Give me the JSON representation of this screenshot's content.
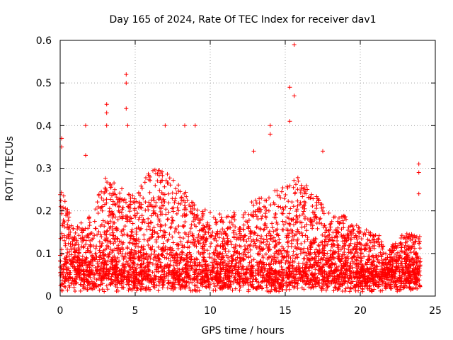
{
  "chart_data": {
    "type": "scatter",
    "title": "Day 165 of 2024, Rate Of TEC Index for receiver dav1",
    "xlabel": "GPS time / hours",
    "ylabel": "ROTI / TECUs",
    "xlim": [
      0,
      25
    ],
    "ylim": [
      0,
      0.6
    ],
    "x_ticks": [
      0,
      5,
      10,
      15,
      20,
      25
    ],
    "x_tick_labels": [
      "0",
      "5",
      "10",
      "15",
      "20",
      "25"
    ],
    "y_ticks": [
      0,
      0.1,
      0.2,
      0.3,
      0.4,
      0.5,
      0.6
    ],
    "y_tick_labels": [
      "0",
      "0.1",
      "0.2",
      "0.3",
      "0.4",
      "0.5",
      "0.6"
    ],
    "grid": true,
    "marker": "plus",
    "series_color": "#ff0000",
    "data_x_range": [
      0,
      24
    ],
    "notable_points": [
      {
        "x": 0.1,
        "y": 0.37
      },
      {
        "x": 0.1,
        "y": 0.35
      },
      {
        "x": 1.7,
        "y": 0.4
      },
      {
        "x": 1.7,
        "y": 0.33
      },
      {
        "x": 3.1,
        "y": 0.45
      },
      {
        "x": 3.1,
        "y": 0.43
      },
      {
        "x": 3.1,
        "y": 0.4
      },
      {
        "x": 4.4,
        "y": 0.52
      },
      {
        "x": 4.4,
        "y": 0.5
      },
      {
        "x": 4.4,
        "y": 0.44
      },
      {
        "x": 4.5,
        "y": 0.4
      },
      {
        "x": 7.0,
        "y": 0.4
      },
      {
        "x": 8.3,
        "y": 0.4
      },
      {
        "x": 9.0,
        "y": 0.4
      },
      {
        "x": 12.9,
        "y": 0.34
      },
      {
        "x": 14.0,
        "y": 0.4
      },
      {
        "x": 14.0,
        "y": 0.38
      },
      {
        "x": 15.3,
        "y": 0.49
      },
      {
        "x": 15.6,
        "y": 0.59
      },
      {
        "x": 15.6,
        "y": 0.47
      },
      {
        "x": 15.3,
        "y": 0.41
      },
      {
        "x": 17.5,
        "y": 0.34
      },
      {
        "x": 23.9,
        "y": 0.31
      },
      {
        "x": 23.9,
        "y": 0.29
      },
      {
        "x": 23.9,
        "y": 0.24
      }
    ],
    "activity_profile": [
      {
        "hour": 0,
        "peak": 0.26
      },
      {
        "hour": 1,
        "peak": 0.16
      },
      {
        "hour": 2,
        "peak": 0.19
      },
      {
        "hour": 3,
        "peak": 0.28
      },
      {
        "hour": 4,
        "peak": 0.26
      },
      {
        "hour": 5,
        "peak": 0.24
      },
      {
        "hour": 6,
        "peak": 0.3
      },
      {
        "hour": 7,
        "peak": 0.3
      },
      {
        "hour": 8,
        "peak": 0.26
      },
      {
        "hour": 9,
        "peak": 0.22
      },
      {
        "hour": 10,
        "peak": 0.2
      },
      {
        "hour": 11,
        "peak": 0.19
      },
      {
        "hour": 12,
        "peak": 0.2
      },
      {
        "hour": 13,
        "peak": 0.23
      },
      {
        "hour": 14,
        "peak": 0.24
      },
      {
        "hour": 15,
        "peak": 0.27
      },
      {
        "hour": 16,
        "peak": 0.28
      },
      {
        "hour": 17,
        "peak": 0.24
      },
      {
        "hour": 18,
        "peak": 0.19
      },
      {
        "hour": 19,
        "peak": 0.19
      },
      {
        "hour": 20,
        "peak": 0.16
      },
      {
        "hour": 21,
        "peak": 0.15
      },
      {
        "hour": 22,
        "peak": 0.12
      },
      {
        "hour": 23,
        "peak": 0.15
      },
      {
        "hour": 24,
        "peak": 0.14
      }
    ],
    "baseline_range": [
      0.01,
      0.06
    ],
    "samples_per_hour": 180
  }
}
